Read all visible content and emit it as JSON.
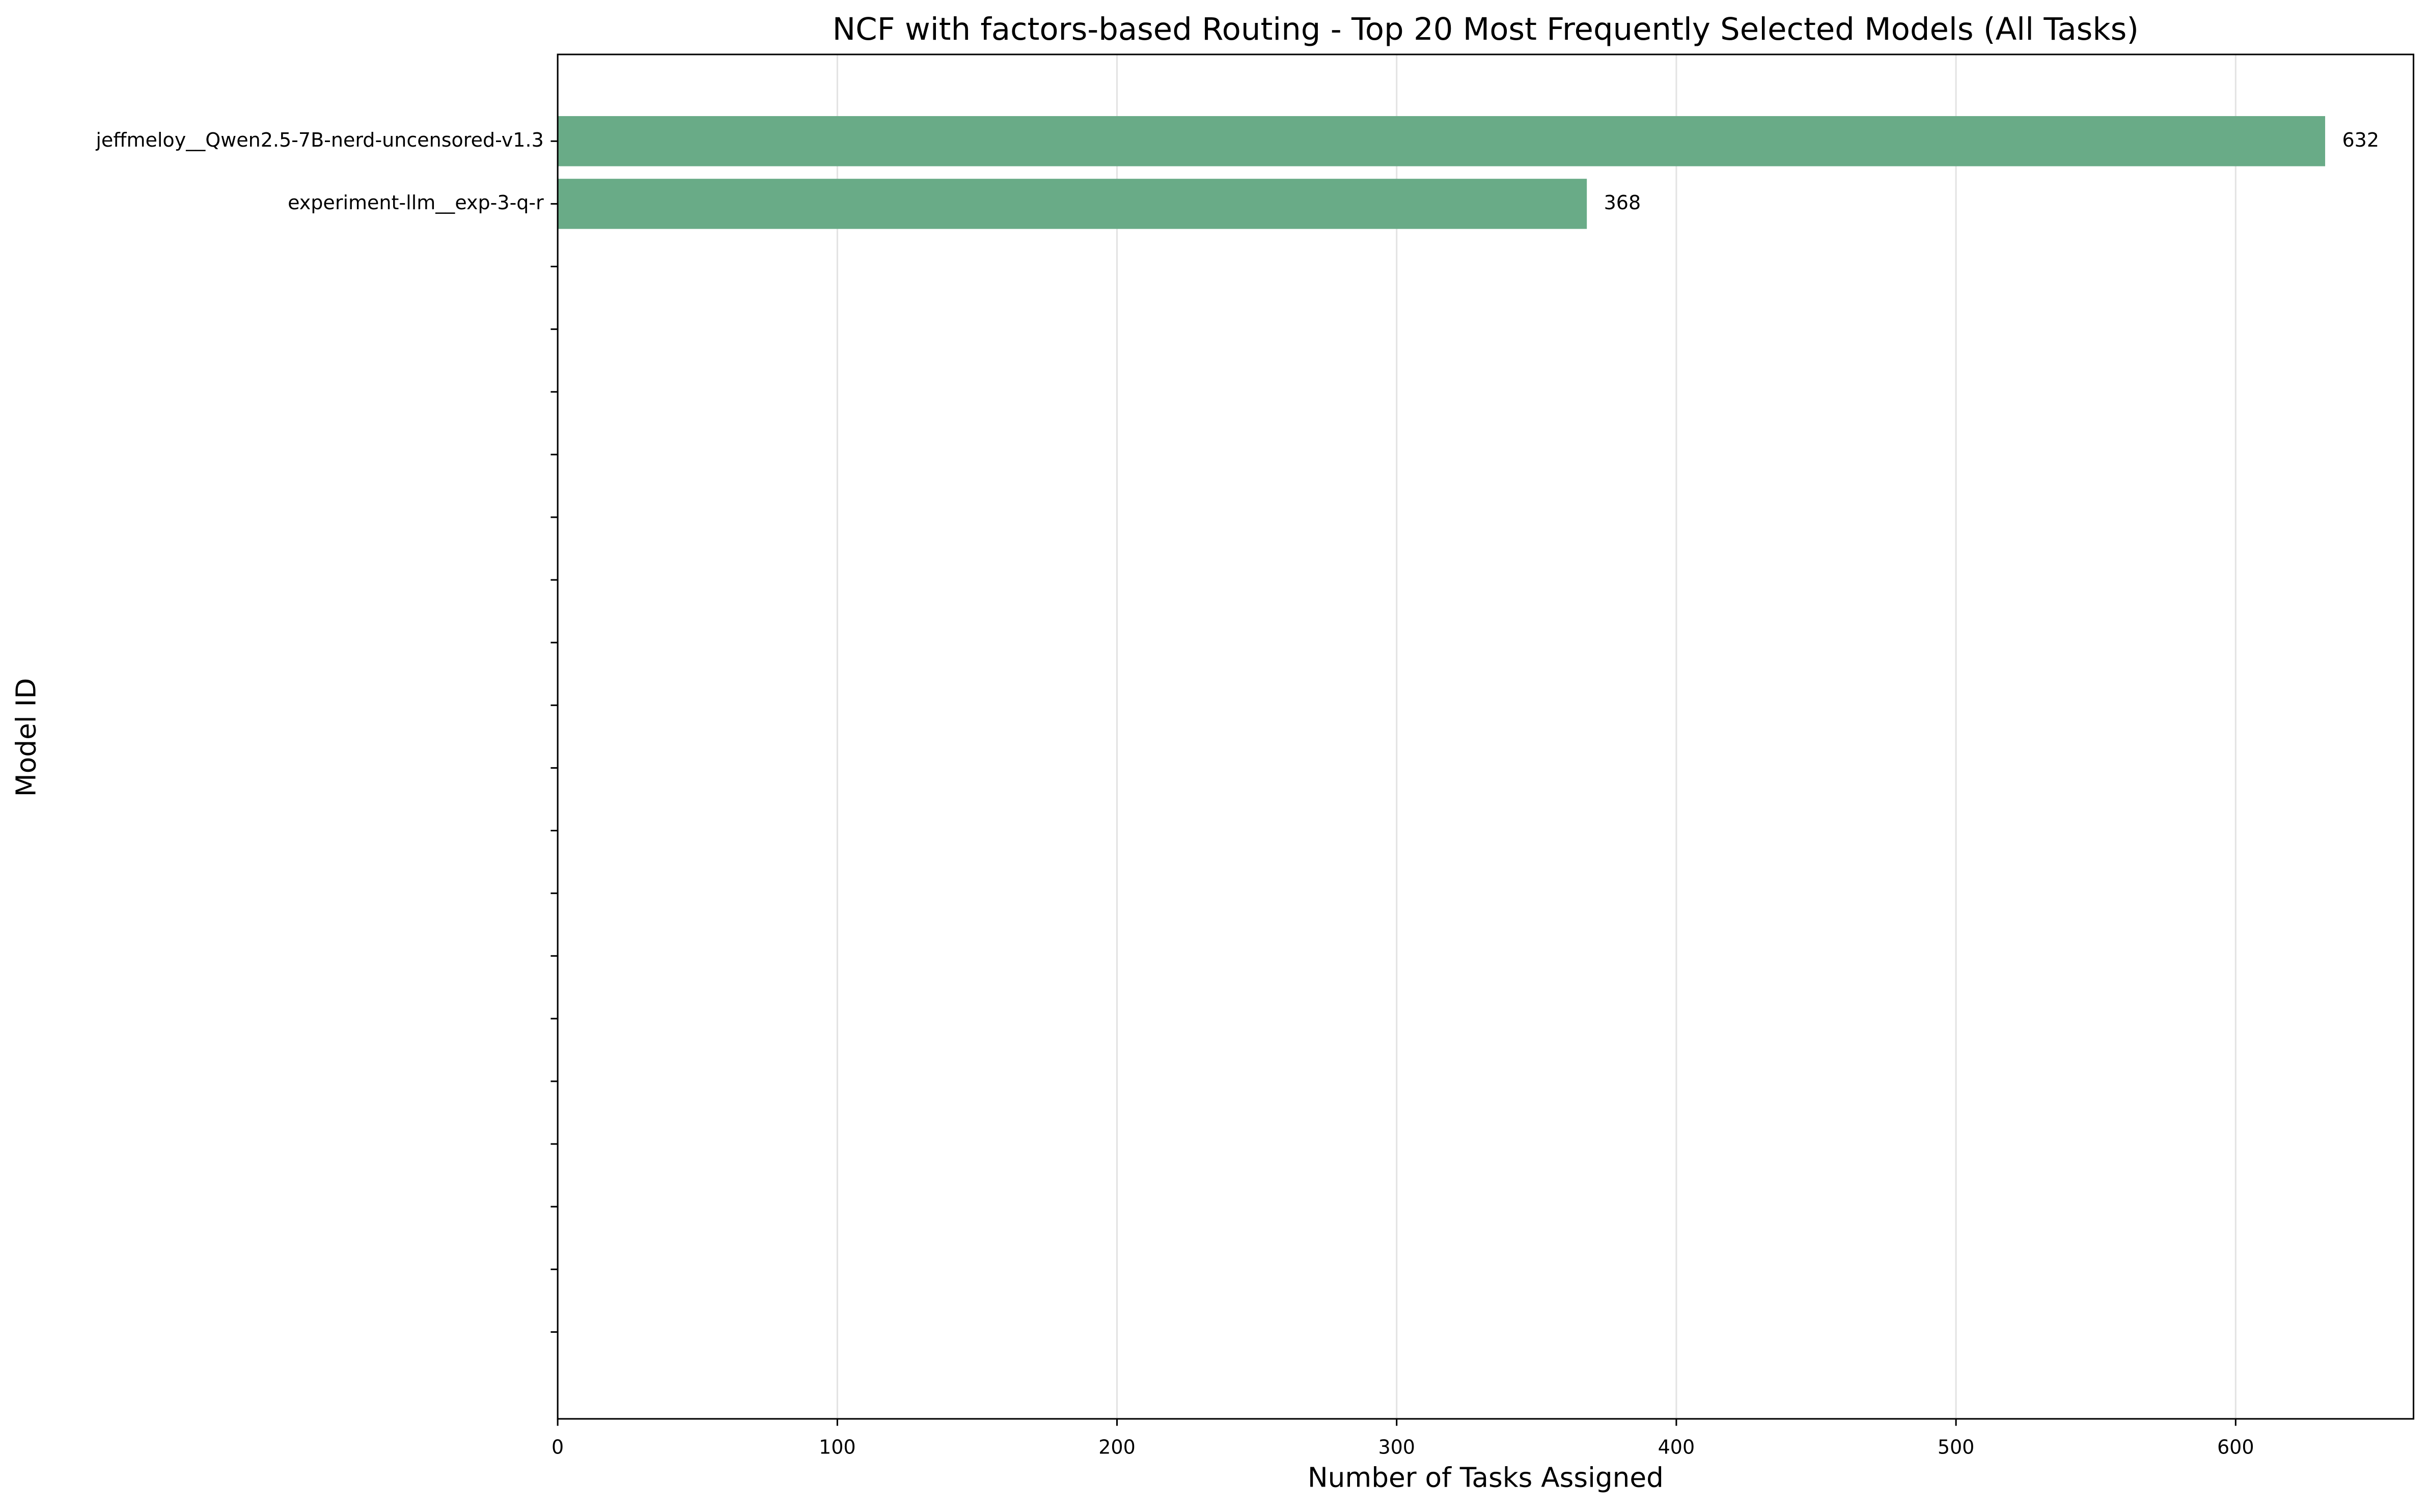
{
  "chart_data": {
    "type": "barh",
    "title": "NCF with factors-based Routing - Top 20 Most Frequently Selected Models (All Tasks)",
    "x_label": "Number of Tasks Assigned",
    "y_label": "Model ID",
    "categories": [
      "jeffmeloy__Qwen2.5-7B-nerd-uncensored-v1.3",
      "experiment-llm__exp-3-q-r",
      null,
      null,
      null,
      null,
      null,
      null,
      null,
      null,
      null,
      null,
      null,
      null,
      null,
      null,
      null,
      null,
      null,
      null
    ],
    "values": [
      632,
      368,
      null,
      null,
      null,
      null,
      null,
      null,
      null,
      null,
      null,
      null,
      null,
      null,
      null,
      null,
      null,
      null,
      null,
      null
    ],
    "color": "#69ab87",
    "xlim": [
      0,
      663.6
    ],
    "xticks": [
      0,
      100,
      200,
      300,
      400,
      500,
      600
    ],
    "grid": true
  }
}
